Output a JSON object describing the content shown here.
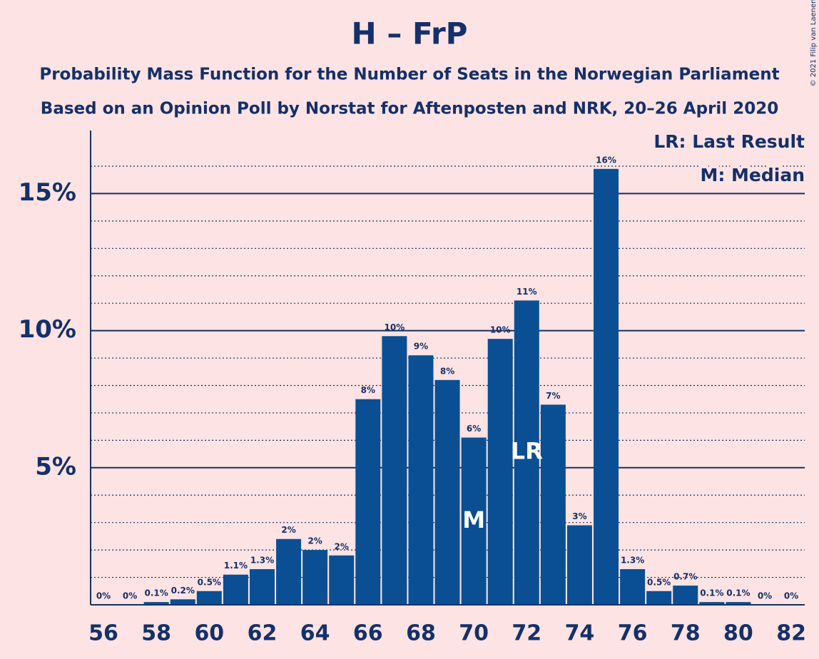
{
  "chart_data": {
    "type": "bar",
    "title": "H – FrP",
    "subtitle": [
      "Probability Mass Function for the Number of Seats in the Norwegian Parliament",
      "Based on an Opinion Poll by Norstat for Aftenposten and NRK, 20–26 April 2020"
    ],
    "copyright": "© 2021 Filip van Laenen",
    "categories": [
      56,
      null,
      58,
      null,
      60,
      null,
      62,
      null,
      64,
      null,
      66,
      null,
      68,
      null,
      70,
      null,
      72,
      null,
      74,
      null,
      76,
      null,
      78,
      null,
      80,
      null,
      82
    ],
    "values": [
      0,
      0,
      0.1,
      0.2,
      0.5,
      1.1,
      1.3,
      2.4,
      2.0,
      1.8,
      7.5,
      9.8,
      9.1,
      8.2,
      6.1,
      9.7,
      11.1,
      7.3,
      2.9,
      15.9,
      1.3,
      0.5,
      0.7,
      0.1,
      0.1,
      0,
      0
    ],
    "value_labels": [
      "0%",
      "0%",
      "0.1%",
      "0.2%",
      "0.5%",
      "1.1%",
      "1.3%",
      "2%",
      "2%",
      "2%",
      "8%",
      "10%",
      "9%",
      "8%",
      "6%",
      "10%",
      "11%",
      "7%",
      "3%",
      "16%",
      "1.3%",
      "0.5%",
      "0.7%",
      "0.1%",
      "0.1%",
      "0%",
      "0%"
    ],
    "color": "#0a4f93",
    "ylim": [
      0,
      17.3
    ],
    "yticks": [
      {
        "value": 5,
        "label": "5%"
      },
      {
        "value": 10,
        "label": "10%"
      },
      {
        "value": 15,
        "label": "15%"
      }
    ],
    "minor_yticks": [
      1,
      2,
      3,
      4,
      6,
      7,
      8,
      9,
      11,
      12,
      13,
      14,
      16
    ],
    "grid": true,
    "annotations": [
      {
        "label": "M",
        "category": 70
      },
      {
        "label": "LR",
        "category": 72
      }
    ],
    "legend": [
      "LR: Last Result",
      "M: Median"
    ],
    "legend_position": "top-right"
  }
}
